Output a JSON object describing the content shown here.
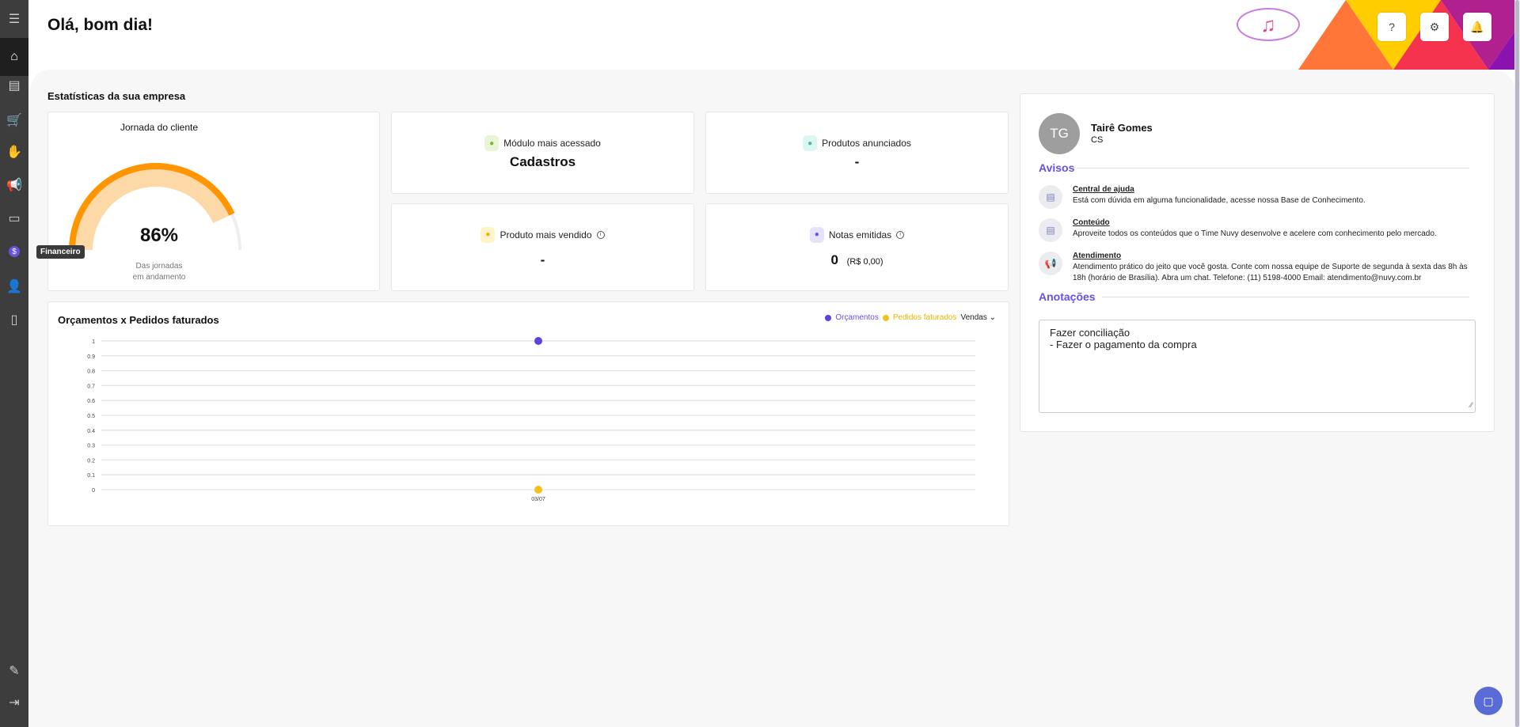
{
  "header": {
    "greeting": "Olá, bom dia!",
    "help_label": "?"
  },
  "sidebar": {
    "items": [
      {
        "icon": "menu-icon",
        "glyph": "☰"
      },
      {
        "icon": "home-icon",
        "glyph": "⌂"
      },
      {
        "icon": "document-add-icon",
        "glyph": "▤"
      },
      {
        "icon": "cart-icon",
        "glyph": "🛒"
      },
      {
        "icon": "hand-money-icon",
        "glyph": "✋"
      },
      {
        "icon": "megaphone-icon",
        "glyph": "📢"
      },
      {
        "icon": "invoice-icon",
        "glyph": "▭"
      },
      {
        "icon": "dollar-icon",
        "glyph": "$"
      },
      {
        "icon": "users-icon",
        "glyph": "👤"
      },
      {
        "icon": "file-icon",
        "glyph": "▯"
      }
    ],
    "bottom": [
      {
        "icon": "user-edit-icon",
        "glyph": "✎"
      },
      {
        "icon": "logout-icon",
        "glyph": "⇥"
      }
    ],
    "tooltip": "Financeiro"
  },
  "stats": {
    "section_title": "Estatísticas da sua empresa",
    "journey": {
      "title": "Jornada do cliente",
      "percent": 86,
      "value": "86%",
      "caption1": "Das jornadas",
      "caption2": "em andamento",
      "color": "#ff9500",
      "light": "#fdd9a8"
    },
    "cards": [
      {
        "label": "Módulo mais acessado",
        "value": "Cadastros",
        "icon": "medal-icon",
        "bg": "#eaf5d8",
        "fg": "#7ab52e"
      },
      {
        "label": "Produtos anunciados",
        "value": "-",
        "icon": "ad-icon",
        "bg": "#dcf6f4",
        "fg": "#4bb8a8"
      },
      {
        "label": "Produto mais vendido",
        "value": "-",
        "icon": "box-icon",
        "bg": "#fff4c8",
        "fg": "#e8b400",
        "info": "i"
      },
      {
        "label": "Notas emitidas",
        "value": "0",
        "extra": "(R$ 0,00)",
        "icon": "note-icon",
        "bg": "#e6e2fb",
        "fg": "#6a4fe0",
        "info": "i"
      }
    ]
  },
  "chart_data": {
    "type": "scatter",
    "title": "Orçamentos x Pedidos faturados",
    "categories": [
      "03/07"
    ],
    "series": [
      {
        "name": "Orçamentos",
        "values": [
          1
        ],
        "color": "#5a43e0"
      },
      {
        "name": "Pedidos faturados",
        "values": [
          0
        ],
        "color": "#f2c21b"
      }
    ],
    "ylim": [
      0,
      1
    ],
    "yticks": [
      "0",
      "0.1",
      "0.2",
      "0.3",
      "0.4",
      "0.5",
      "0.6",
      "0.7",
      "0.8",
      "0.9",
      "1"
    ],
    "grid": true,
    "legend": "top-right",
    "filter": "Vendas"
  },
  "profile": {
    "initials": "TG",
    "name": "Tairê Gomes",
    "role": "CS"
  },
  "avisos": {
    "title": "Avisos",
    "items": [
      {
        "title": "Central de ajuda",
        "text": "Está com dúvida em alguma funcionalidade, acesse nossa Base de Conhecimento.",
        "icon": "article-icon",
        "glyph": "▤"
      },
      {
        "title": "Conteúdo",
        "text": "Aproveite todos os conteúdos que o Time Nuvy desenvolve e acelere com conhecimento pelo mercado.",
        "icon": "article-icon",
        "glyph": "▤"
      },
      {
        "title": "Atendimento",
        "text": "Atendimento prático do jeito que você gosta. Conte com nossa equipe de Suporte de segunda à sexta das 8h às 18h (horário de Brasília). Abra um chat. Telefone: (11) 5198-4000 Email: atendimento@nuvy.com.br",
        "icon": "megaphone-icon",
        "glyph": "📢"
      }
    ]
  },
  "notes": {
    "title": "Anotações",
    "value": "Fazer conciliação\n- Fazer o pagamento da compra"
  }
}
